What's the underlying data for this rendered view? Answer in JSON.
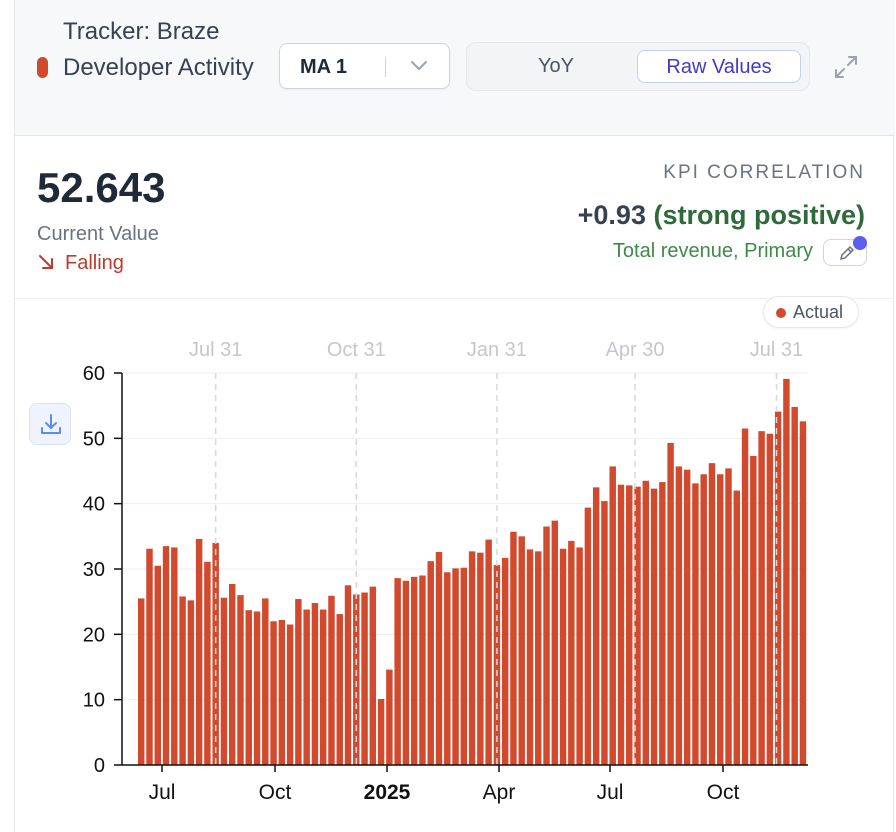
{
  "header": {
    "title": "Tracker: Braze Developer Activity",
    "moving_average": "MA 1",
    "toggle_options": [
      "YoY",
      "Raw Values"
    ],
    "selected_toggle": "Raw Values",
    "series_color": "#d14a2d"
  },
  "summary": {
    "current_value": "52.643",
    "current_label": "Current Value",
    "trend": "Falling",
    "kpi_label": "KPI CORRELATION",
    "kpi_value": "+0.93",
    "kpi_strength": "(strong positive)",
    "kpi_target": "Total revenue, Primary"
  },
  "icons": {
    "expand": "expand-icon",
    "chevron": "chevron-down-icon",
    "download": "download-icon",
    "edit": "pencil-icon",
    "trend": "arrow-down-right-icon"
  },
  "chart_data": {
    "type": "bar",
    "legend": [
      "Actual"
    ],
    "legend_position": "top-right",
    "ylim": [
      0,
      60
    ],
    "yticks": [
      0,
      10,
      20,
      30,
      40,
      50,
      60
    ],
    "xticks": [
      "Jul",
      "Oct",
      "2025",
      "Apr",
      "Jul",
      "Oct"
    ],
    "period_markers": [
      "Jul 31",
      "Oct 31",
      "Jan 31",
      "Apr 30",
      "Jul 31"
    ],
    "grid": true,
    "series": [
      {
        "name": "Actual",
        "color": "#d14a2d",
        "values": [
          25.5,
          33.1,
          30.5,
          33.5,
          33.3,
          25.8,
          25.2,
          34.6,
          31.1,
          34.0,
          25.6,
          27.7,
          26.0,
          23.7,
          23.5,
          25.5,
          22.0,
          22.2,
          21.5,
          25.4,
          23.8,
          24.8,
          23.8,
          25.9,
          23.1,
          27.5,
          26.1,
          26.4,
          27.3,
          10.1,
          14.6,
          28.6,
          28.2,
          28.8,
          29.0,
          31.2,
          32.6,
          29.5,
          30.1,
          30.2,
          32.7,
          32.5,
          34.5,
          30.6,
          31.7,
          35.7,
          35.0,
          33.0,
          32.7,
          36.5,
          37.4,
          33.1,
          34.3,
          33.3,
          39.4,
          42.5,
          40.4,
          45.7,
          42.9,
          42.8,
          42.6,
          43.5,
          42.3,
          43.3,
          49.3,
          45.7,
          45.2,
          43.1,
          44.5,
          46.2,
          44.5,
          45.4,
          42.0,
          51.5,
          47.3,
          51.1,
          50.7,
          54.1,
          59.1,
          54.8,
          52.6
        ]
      }
    ]
  }
}
